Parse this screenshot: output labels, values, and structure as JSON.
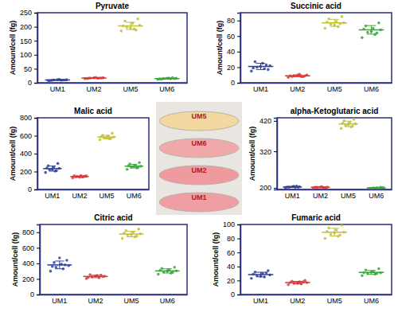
{
  "chart_data": [
    {
      "type": "strip",
      "title": "Pyruvate",
      "y_label": "Amount/cell (fg)",
      "categories": [
        "UM1",
        "UM2",
        "UM5",
        "UM6"
      ],
      "colors": [
        "#2b3f9e",
        "#d9383a",
        "#c2bf3a",
        "#3aa33a"
      ],
      "ylim": [
        0,
        250
      ],
      "yticks": [
        0,
        50,
        100,
        150,
        200,
        250
      ],
      "points": [
        [
          8,
          9,
          10,
          11,
          12,
          9,
          10,
          11,
          8,
          10
        ],
        [
          15,
          16,
          17,
          18,
          19,
          16,
          17,
          18,
          15,
          17
        ],
        [
          185,
          192,
          198,
          205,
          212,
          220,
          228,
          195,
          203,
          188
        ],
        [
          12,
          14,
          15,
          16,
          17,
          13,
          15,
          16,
          14,
          18
        ]
      ],
      "means": [
        10,
        17,
        203,
        15
      ],
      "errors": [
        1.5,
        1.5,
        13,
        2
      ]
    },
    {
      "type": "strip",
      "title": "Succinic acid",
      "y_label": "Amount/cell (fg)",
      "categories": [
        "UM1",
        "UM2",
        "UM5",
        "UM6"
      ],
      "colors": [
        "#2b3f9e",
        "#d9383a",
        "#c2bf3a",
        "#3aa33a"
      ],
      "ylim": [
        0,
        90
      ],
      "yticks": [
        0,
        20,
        40,
        60,
        80
      ],
      "points": [
        [
          15,
          18,
          20,
          22,
          25,
          27,
          17,
          21,
          19,
          23
        ],
        [
          7,
          8,
          9,
          10,
          11,
          8,
          9,
          10,
          9,
          8
        ],
        [
          70,
          72,
          75,
          77,
          79,
          82,
          85,
          74,
          78,
          76
        ],
        [
          58,
          62,
          65,
          68,
          70,
          73,
          77,
          66,
          69,
          64
        ]
      ],
      "means": [
        21,
        9,
        77,
        68
      ],
      "errors": [
        4,
        1.2,
        4.5,
        5.5
      ]
    },
    {
      "type": "strip",
      "title": "Malic acid",
      "y_label": "Amount/cell (fg)",
      "categories": [
        "UM1",
        "UM2",
        "UM5",
        "UM6"
      ],
      "colors": [
        "#2b3f9e",
        "#d9383a",
        "#c2bf3a",
        "#3aa33a"
      ],
      "ylim": [
        0,
        800
      ],
      "yticks": [
        0,
        200,
        400,
        600,
        800
      ],
      "points": [
        [
          190,
          205,
          220,
          235,
          250,
          265,
          290,
          225,
          240,
          210
        ],
        [
          130,
          138,
          145,
          150,
          155,
          140,
          148,
          135,
          152,
          143
        ],
        [
          555,
          565,
          575,
          585,
          595,
          605,
          628,
          580,
          590,
          570
        ],
        [
          225,
          240,
          250,
          260,
          270,
          285,
          300,
          255,
          265,
          245
        ]
      ],
      "means": [
        233,
        144,
        585,
        260
      ],
      "errors": [
        28,
        8,
        20,
        20
      ]
    },
    {
      "type": "strip",
      "title": "alpha-Ketoglutaric  acid",
      "y_label": "Amount/cell (fg)",
      "categories": [
        "UM1",
        "UM2",
        "UM5",
        "UM6"
      ],
      "colors": [
        "#2b3f9e",
        "#d9383a",
        "#c2bf3a",
        "#3aa33a"
      ],
      "ylim": [
        195,
        430
      ],
      "yticks": [
        200,
        320,
        420
      ],
      "points": [
        [
          201,
          202,
          203,
          204,
          205,
          203,
          202,
          204,
          203,
          206
        ],
        [
          200,
          201,
          202,
          203,
          204,
          202,
          201,
          203,
          202,
          201
        ],
        [
          395,
          400,
          405,
          410,
          415,
          420,
          425,
          408,
          412,
          403
        ],
        [
          198,
          199,
          200,
          201,
          200,
          199,
          201,
          200,
          198,
          202
        ]
      ],
      "means": [
        203,
        202,
        410,
        200
      ],
      "errors": [
        1.5,
        1.2,
        9,
        1.2
      ]
    },
    {
      "type": "strip",
      "title": "Citric acid",
      "y_label": "Amount/cell (fg)",
      "categories": [
        "UM1",
        "UM2",
        "UM5",
        "UM6"
      ],
      "colors": [
        "#2b3f9e",
        "#d9383a",
        "#c2bf3a",
        "#3aa33a"
      ],
      "ylim": [
        0,
        900
      ],
      "yticks": [
        0,
        200,
        400,
        600,
        800
      ],
      "points": [
        [
          300,
          330,
          350,
          370,
          390,
          410,
          440,
          470,
          360,
          380
        ],
        [
          205,
          215,
          225,
          235,
          245,
          255,
          230,
          240,
          220,
          250
        ],
        [
          720,
          740,
          760,
          780,
          800,
          820,
          840,
          770,
          790,
          750
        ],
        [
          260,
          275,
          290,
          305,
          320,
          335,
          350,
          300,
          310,
          285
        ]
      ],
      "means": [
        380,
        232,
        777,
        303
      ],
      "errors": [
        50,
        15,
        35,
        27
      ]
    },
    {
      "type": "strip",
      "title": "Fumaric acid",
      "y_label": "Amount/cell (fg)",
      "categories": [
        "UM1",
        "UM2",
        "UM5",
        "UM6"
      ],
      "colors": [
        "#2b3f9e",
        "#d9383a",
        "#c2bf3a",
        "#3aa33a"
      ],
      "ylim": [
        0,
        100
      ],
      "yticks": [
        0,
        20,
        40,
        60,
        80,
        100
      ],
      "points": [
        [
          23,
          25,
          27,
          28,
          30,
          32,
          34,
          26,
          29,
          31
        ],
        [
          14,
          15,
          16,
          17,
          18,
          19,
          20,
          16,
          17,
          18
        ],
        [
          80,
          83,
          86,
          89,
          92,
          95,
          99,
          88,
          90,
          85
        ],
        [
          27,
          29,
          30,
          31,
          33,
          35,
          37,
          32,
          31,
          30
        ]
      ],
      "means": [
        28.5,
        17,
        89,
        31.5
      ],
      "errors": [
        3.3,
        1.8,
        5.5,
        2.8
      ]
    }
  ],
  "photo": {
    "labels": [
      "UM5",
      "UM6",
      "UM2",
      "UM1"
    ]
  }
}
